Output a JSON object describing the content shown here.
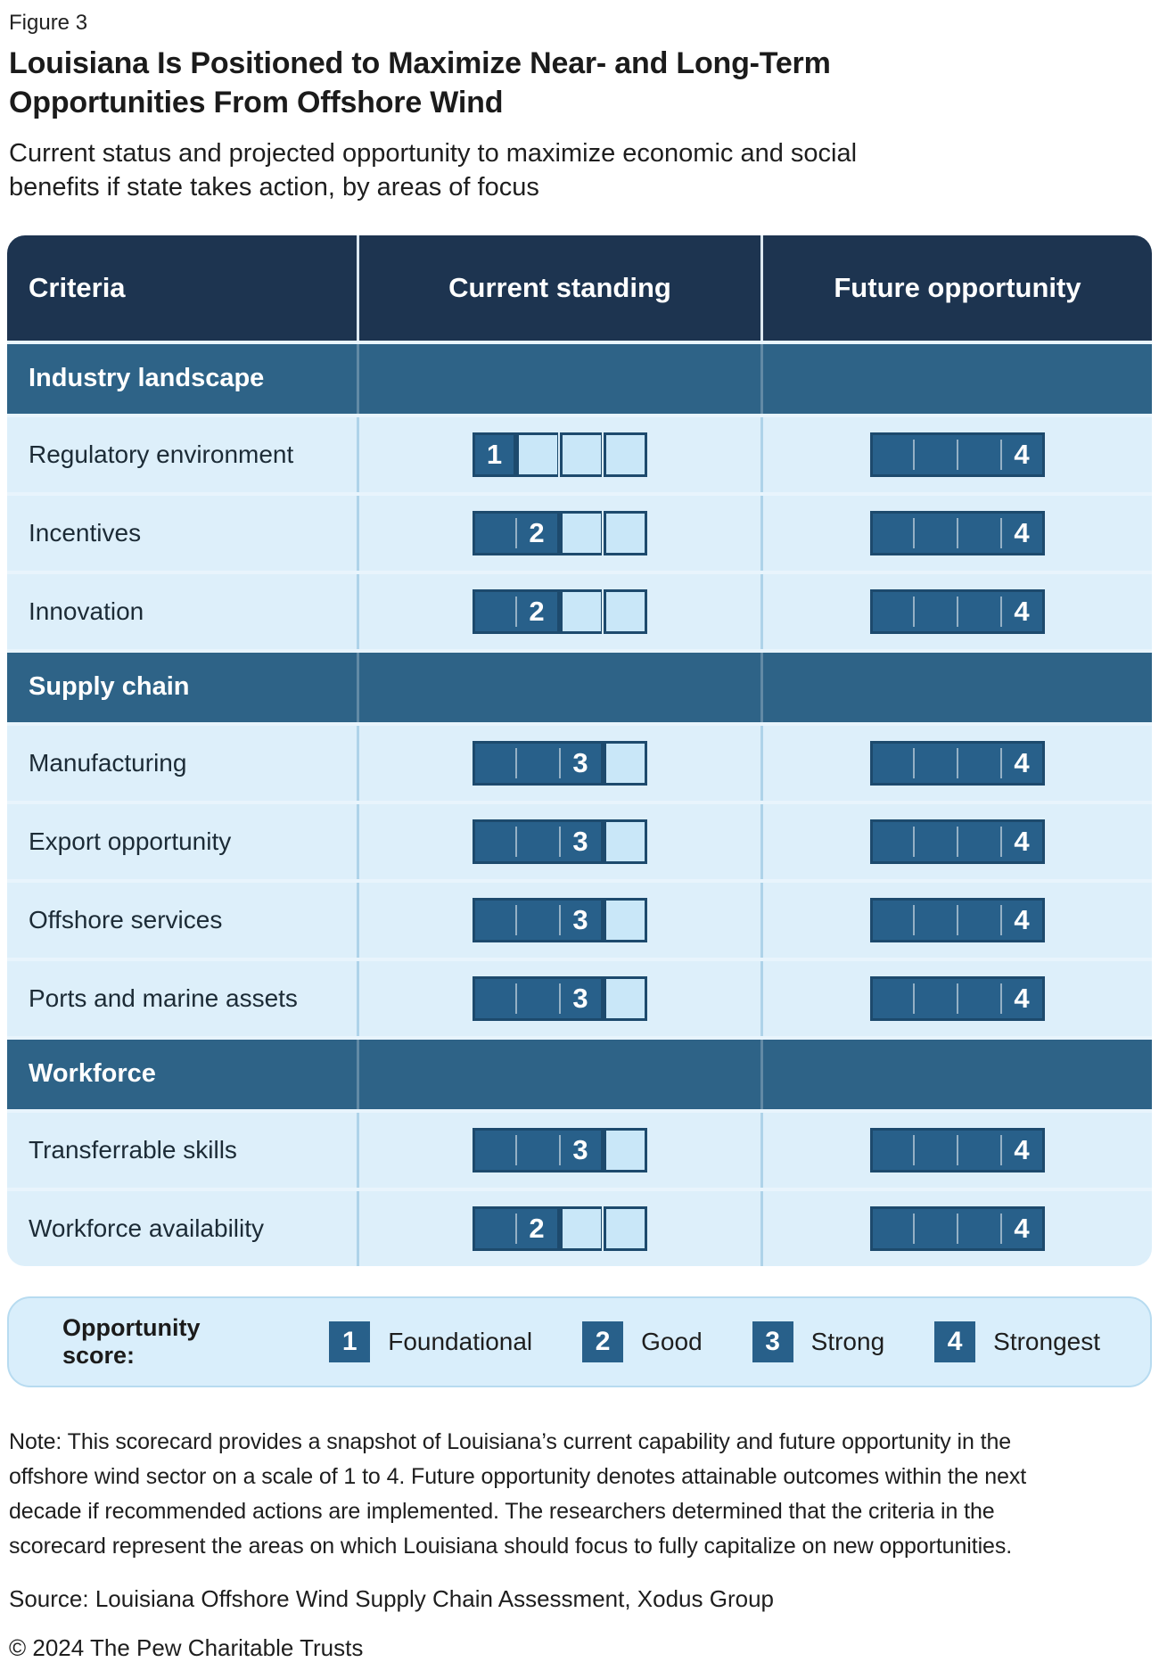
{
  "figure_label": "Figure 3",
  "title_lines": [
    "Louisiana Is Positioned to Maximize Near- and Long-Term",
    "Opportunities From Offshore Wind"
  ],
  "subtitle_lines": [
    "Current status and projected opportunity to maximize economic and social",
    "benefits if state takes action, by areas of focus"
  ],
  "chart_data": {
    "type": "table",
    "title": "Louisiana Is Positioned to Maximize Near- and Long-Term Opportunities From Offshore Wind",
    "subtitle": "Current status and projected opportunity to maximize economic and social benefits if state takes action, by areas of focus",
    "columns": [
      "Criteria",
      "Current standing",
      "Future opportunity"
    ],
    "scale_min": 1,
    "scale_max": 4,
    "score_labels": [
      "Foundational",
      "Good",
      "Strong",
      "Strongest"
    ],
    "sections": [
      {
        "label": "Industry landscape",
        "rows": [
          {
            "criteria": "Regulatory environment",
            "current": 1,
            "future": 4
          },
          {
            "criteria": "Incentives",
            "current": 2,
            "future": 4
          },
          {
            "criteria": "Innovation",
            "current": 2,
            "future": 4
          }
        ]
      },
      {
        "label": "Supply chain",
        "rows": [
          {
            "criteria": "Manufacturing",
            "current": 3,
            "future": 4
          },
          {
            "criteria": "Export opportunity",
            "current": 3,
            "future": 4
          },
          {
            "criteria": "Offshore services",
            "current": 3,
            "future": 4
          },
          {
            "criteria": "Ports and marine assets",
            "current": 3,
            "future": 4
          }
        ]
      },
      {
        "label": "Workforce",
        "rows": [
          {
            "criteria": "Transferrable skills",
            "current": 3,
            "future": 4
          },
          {
            "criteria": "Workforce availability",
            "current": 2,
            "future": 4
          }
        ]
      }
    ]
  },
  "legend": {
    "label": "Opportunity score:",
    "items": [
      {
        "score": "1",
        "label": "Foundational"
      },
      {
        "score": "2",
        "label": "Good"
      },
      {
        "score": "3",
        "label": "Strong"
      },
      {
        "score": "4",
        "label": "Strongest"
      }
    ]
  },
  "note_lines": [
    "Note: This scorecard provides a snapshot of Louisiana’s current capability and future opportunity in the",
    "offshore wind sector on a scale of 1 to 4. Future opportunity denotes attainable outcomes within the next",
    "decade if recommended actions are implemented. The researchers determined that the criteria in the",
    "scorecard represent the areas on which Louisiana should focus to fully capitalize on new opportunities."
  ],
  "source": "Source: Louisiana Offshore Wind Supply Chain Assessment, Xodus Group",
  "copyright": "© 2024 The Pew Charitable Trusts",
  "colors": {
    "header_navy": "#1d3450",
    "section_blue": "#2e6387",
    "row_bg": "#ddeffa",
    "bar_fill": "#28608a",
    "bar_border": "#1d4a6d",
    "bar_empty": "#c9e7f8",
    "legend_bg": "#d9eefb",
    "legend_border": "#b7dbf0"
  }
}
